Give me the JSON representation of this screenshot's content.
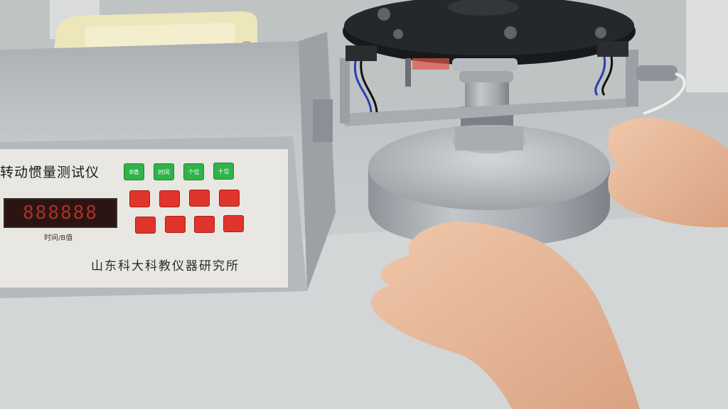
{
  "instrument": {
    "title": "转动惯量测试仪",
    "display_digits": "888888",
    "display_label": "时间/B值",
    "manufacturer": "山东科大科教仪器研究所",
    "buttons_green": [
      "B值",
      "时间",
      "个位",
      "十位"
    ],
    "buttons_red_row1": [
      "",
      "",
      "",
      ""
    ],
    "buttons_red_row2": [
      "",
      "",
      "",
      ""
    ]
  },
  "colors": {
    "bench": "#cfd2d3",
    "instrument_body": "#b9bcc0",
    "panel_face": "#e9e7e2",
    "display_digits": "#c2352b",
    "button_green": "#2fb34a",
    "button_red": "#e0342c",
    "disk_black": "#1c1e21",
    "disk_aluminum": "#a9adb2",
    "skin": "#e8b99a"
  }
}
